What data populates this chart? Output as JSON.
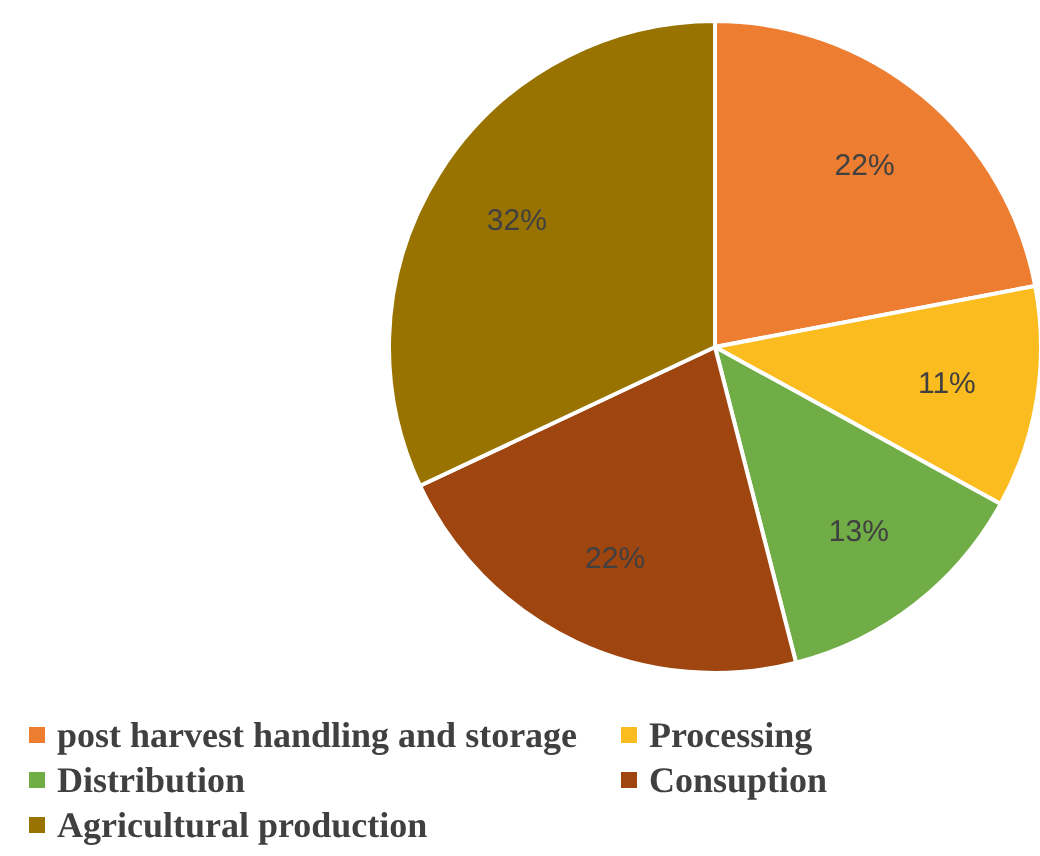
{
  "chart_data": {
    "type": "pie",
    "categories": [
      "post harvest handling and storage",
      "Processing",
      "Distribution",
      "Consuption",
      "Agricultural production"
    ],
    "values": [
      22,
      11,
      13,
      22,
      32
    ],
    "colors": [
      "#ed7d31",
      "#fbbc1f",
      "#70ad47",
      "#9e4510",
      "#997300"
    ],
    "value_labels": [
      "22%",
      "11%",
      "13%",
      "22%",
      "32%"
    ],
    "legend": "bottom"
  }
}
